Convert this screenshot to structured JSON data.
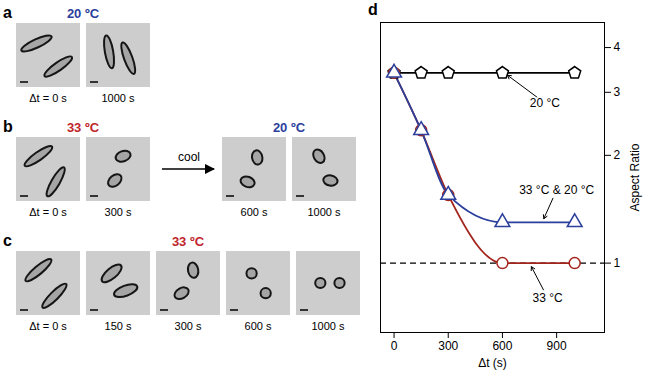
{
  "image_panels": [
    {
      "letter": "a",
      "groups": [
        {
          "title": "20 ºC",
          "color": "#2b3f9c",
          "frames": [
            "Δt = 0 s",
            "1000 s"
          ]
        }
      ]
    },
    {
      "letter": "b",
      "arrow_label": "cool",
      "groups": [
        {
          "title": "33 ºC",
          "color": "#c0262b",
          "frames": [
            "Δt = 0 s",
            "300 s"
          ]
        },
        {
          "title": "20 ºC",
          "color": "#2b3f9c",
          "frames": [
            "600 s",
            "1000 s"
          ]
        }
      ]
    },
    {
      "letter": "c",
      "groups": [
        {
          "title": "33 ºC",
          "color": "#c0262b",
          "frames": [
            "Δt = 0 s",
            "150 s",
            "300 s",
            "600 s",
            "1000 s"
          ]
        }
      ]
    }
  ],
  "chart_data": {
    "letter": "d",
    "type": "line",
    "x_label": "Δt (s)",
    "y_label": "Aspect Ratio",
    "log": "y",
    "grid": false,
    "xlim": [
      -75,
      1165
    ],
    "xticks": [
      0,
      300,
      600,
      900
    ],
    "ylim": [
      0.64,
      4.7
    ],
    "yticks": [
      1,
      2,
      3,
      4
    ],
    "x": [
      0,
      150,
      300,
      600,
      1000
    ],
    "series": [
      {
        "name": "20 °C",
        "color": "#000000",
        "marker": "pentagon",
        "line_style": "solid",
        "values": [
          3.4,
          3.4,
          3.4,
          3.4,
          3.4
        ],
        "annotation": {
          "x": 835,
          "y": 2.8,
          "point_x": 610,
          "point_y": 3.4
        }
      },
      {
        "name": "33 °C",
        "color": "#a3241c",
        "marker": "circle",
        "line_style": "solid",
        "values": [
          3.4,
          2.35,
          1.55,
          1.0,
          1.0
        ],
        "annotation": {
          "x": 850,
          "y": 0.8,
          "point_x": 750,
          "point_y": 1.0
        }
      },
      {
        "name": "33 °C & 20 °C",
        "color": "#2b3f9c",
        "marker": "triangle",
        "line_style": "solid",
        "values": [
          3.4,
          2.35,
          1.55,
          1.3,
          1.3
        ],
        "annotation": {
          "x": 900,
          "y": 1.6,
          "point_x": 820,
          "point_y": 1.3
        }
      }
    ],
    "reference_lines": [
      {
        "y": 1,
        "line_style": "dashed",
        "color": "#000000"
      }
    ]
  }
}
